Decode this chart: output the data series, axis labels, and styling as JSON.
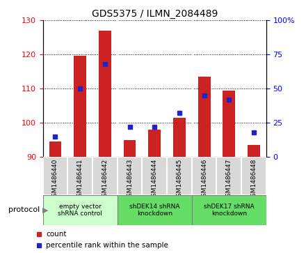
{
  "title": "GDS5375 / ILMN_2084489",
  "samples": [
    "GSM1486440",
    "GSM1486441",
    "GSM1486442",
    "GSM1486443",
    "GSM1486444",
    "GSM1486445",
    "GSM1486446",
    "GSM1486447",
    "GSM1486448"
  ],
  "counts": [
    94.5,
    119.5,
    127.0,
    95.0,
    98.0,
    101.5,
    113.5,
    109.5,
    93.5
  ],
  "percentiles": [
    15,
    50,
    68,
    22,
    22,
    32,
    45,
    42,
    18
  ],
  "ylim_left": [
    90,
    130
  ],
  "ylim_right": [
    0,
    100
  ],
  "yticks_left": [
    90,
    100,
    110,
    120,
    130
  ],
  "yticks_right": [
    0,
    25,
    50,
    75,
    100
  ],
  "protocols": [
    {
      "label": "empty vector\nshRNA control",
      "start": 0,
      "end": 3,
      "color": "#ccffcc"
    },
    {
      "label": "shDEK14 shRNA\nknockdown",
      "start": 3,
      "end": 6,
      "color": "#66dd66"
    },
    {
      "label": "shDEK17 shRNA\nknockdown",
      "start": 6,
      "end": 9,
      "color": "#66dd66"
    }
  ],
  "bar_color": "#cc2222",
  "dot_color": "#2222cc",
  "bar_width": 0.5,
  "cell_bg": "#d8d8d8",
  "plot_bg": "#ffffff",
  "protocol_label": "protocol",
  "legend_count": "count",
  "legend_percentile": "percentile rank within the sample"
}
